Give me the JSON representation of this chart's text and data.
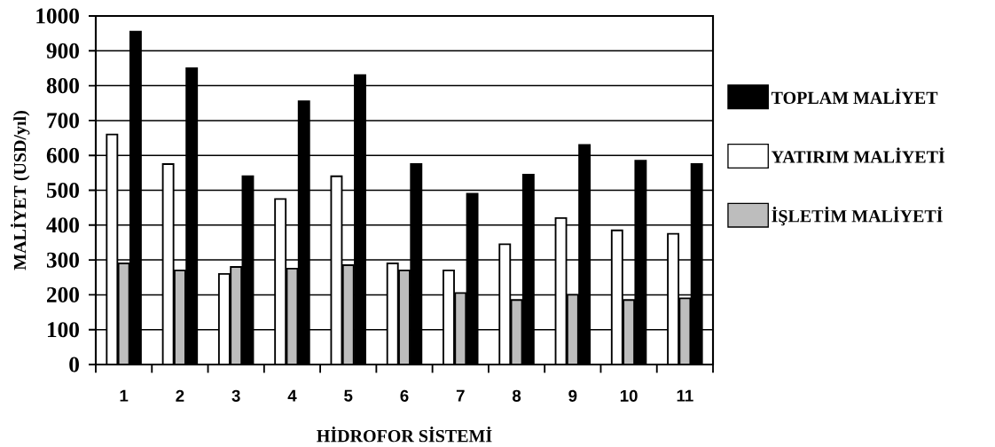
{
  "chart_data": {
    "type": "bar",
    "xlabel": "HİDROFOR SİSTEMİ",
    "ylabel": "MALİYET (USD/yıl)",
    "categories": [
      "1",
      "2",
      "3",
      "4",
      "5",
      "6",
      "7",
      "8",
      "9",
      "10",
      "11"
    ],
    "series": [
      {
        "name": "YATIRIM MALİYETİ",
        "color": "#ffffff",
        "values": [
          660,
          575,
          260,
          475,
          540,
          290,
          270,
          345,
          420,
          385,
          375
        ]
      },
      {
        "name": "İŞLETİM MALİYETİ",
        "color": "#bdbdbd",
        "values": [
          290,
          270,
          280,
          275,
          285,
          270,
          205,
          185,
          200,
          185,
          190
        ]
      },
      {
        "name": "TOPLAM MALİYET",
        "color": "#000000",
        "values": [
          955,
          850,
          540,
          755,
          830,
          575,
          490,
          545,
          630,
          585,
          575
        ]
      }
    ],
    "ylim": [
      0,
      1000
    ],
    "yticks": [
      0,
      100,
      200,
      300,
      400,
      500,
      600,
      700,
      800,
      900,
      1000
    ],
    "grid": "y",
    "legend": "right"
  }
}
